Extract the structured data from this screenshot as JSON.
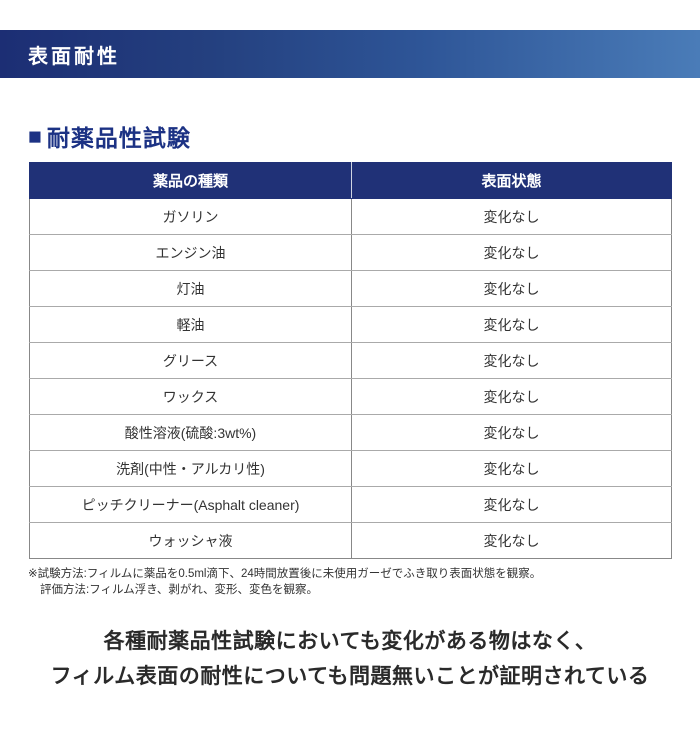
{
  "banner": {
    "title": "表面耐性"
  },
  "section": {
    "bullet": "■",
    "title": "耐薬品性試験"
  },
  "table": {
    "headers": [
      "薬品の種類",
      "表面状態"
    ],
    "rows": [
      [
        "ガソリン",
        "変化なし"
      ],
      [
        "エンジン油",
        "変化なし"
      ],
      [
        "灯油",
        "変化なし"
      ],
      [
        "軽油",
        "変化なし"
      ],
      [
        "グリース",
        "変化なし"
      ],
      [
        "ワックス",
        "変化なし"
      ],
      [
        "酸性溶液(硫酸:3wt%)",
        "変化なし"
      ],
      [
        "洗剤(中性・アルカリ性)",
        "変化なし"
      ],
      [
        "ピッチクリーナー(Asphalt cleaner)",
        "変化なし"
      ],
      [
        "ウォッシャ液",
        "変化なし"
      ]
    ]
  },
  "notes": {
    "line1": "※試験方法:フィルムに薬品を0.5ml滴下、24時間放置後に未使用ガーゼでふき取り表面状態を観察。",
    "line2": "評価方法:フィルム浮き、剥がれ、変形、変色を観察。"
  },
  "conclusion": {
    "line1": "各種耐薬品性試験においても変化がある物はなく、",
    "line2": "フィルム表面の耐性についても問題無いことが証明されている"
  },
  "colors": {
    "banner_gradient_start": "#1c2e74",
    "banner_gradient_end": "#4a7cb8",
    "table_header_bg": "#203177",
    "section_title_blue": "#1c3284",
    "body_text": "#333333"
  }
}
